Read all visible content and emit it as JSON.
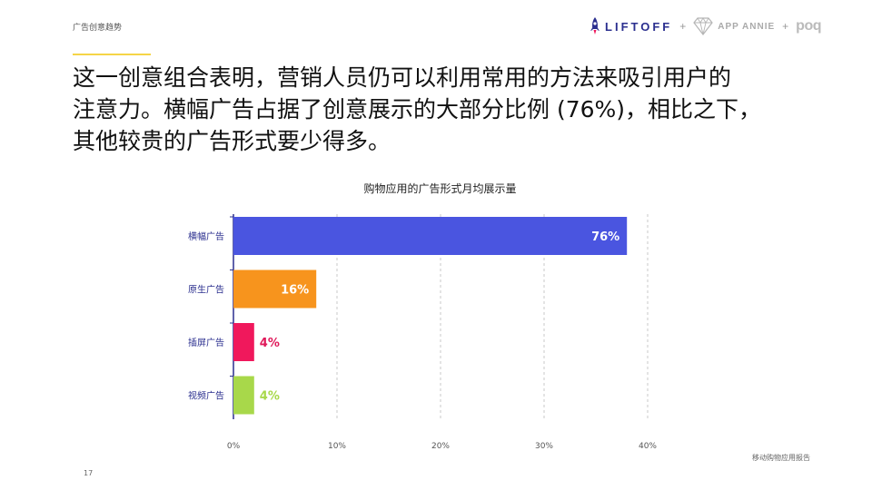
{
  "header": {
    "section": "广告创意趋势",
    "logos": {
      "liftoff": "LIFTOFF",
      "plus": "+",
      "appannie": "APP ANNIE",
      "poq": "poq"
    }
  },
  "headline": {
    "lines": [
      "这一创意组合表明，营销人员仍可以利用常用的方法来吸引用户的",
      "注意力。横幅广告占据了创意展示的大部分比例 (76%)，相比之下，",
      "其他较贵的广告形式要少得多。"
    ]
  },
  "chart_data": {
    "type": "bar",
    "orientation": "horizontal",
    "title": "购物应用的广告形式月均展示量",
    "categories": [
      "横幅广告",
      "原生广告",
      "插屏广告",
      "视频广告"
    ],
    "values": [
      76,
      16,
      4,
      4
    ],
    "data_labels": [
      "76%",
      "16%",
      "4%",
      "4%"
    ],
    "colors": [
      "#4a55e0",
      "#f7941d",
      "#f0185c",
      "#a8d84a"
    ],
    "label_colors": [
      "#ffffff",
      "#ffffff",
      "#e0195a",
      "#a8d84a"
    ],
    "label_inside": [
      true,
      true,
      false,
      false
    ],
    "bar_scale_max": 80,
    "xticks": [
      "0%",
      "10%",
      "20%",
      "30%",
      "40%"
    ],
    "xlim": [
      0,
      40
    ],
    "grid": true,
    "xlabel": "",
    "ylabel": ""
  },
  "footer": {
    "source": "移动购物应用报告",
    "page": "17"
  }
}
